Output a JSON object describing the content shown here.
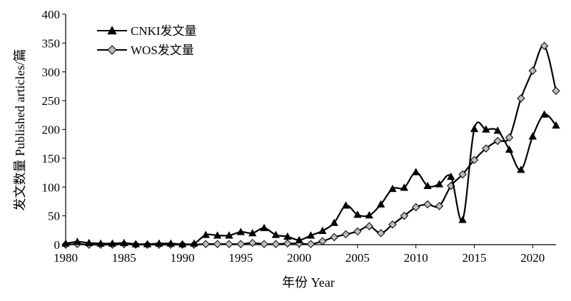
{
  "chart_data": {
    "type": "line",
    "xlabel": "年份 Year",
    "ylabel": "发文数量 Published articles/篇",
    "xlim": [
      1980,
      2022
    ],
    "ylim": [
      0,
      400
    ],
    "x_ticks": [
      1980,
      1985,
      1990,
      1995,
      2000,
      2005,
      2010,
      2015,
      2020
    ],
    "y_ticks": [
      0,
      50,
      100,
      150,
      200,
      250,
      300,
      350,
      400
    ],
    "legend_position": "top-left",
    "grid": false,
    "x": [
      1980,
      1981,
      1982,
      1983,
      1984,
      1985,
      1986,
      1987,
      1988,
      1989,
      1990,
      1991,
      1992,
      1993,
      1994,
      1995,
      1996,
      1997,
      1998,
      1999,
      2000,
      2001,
      2002,
      2003,
      2004,
      2005,
      2006,
      2007,
      2008,
      2009,
      2010,
      2011,
      2012,
      2013,
      2014,
      2015,
      2016,
      2017,
      2018,
      2019,
      2020,
      2021,
      2022
    ],
    "series": [
      {
        "name": "CNKI发文量",
        "marker": "triangle",
        "values": [
          2,
          5,
          3,
          2,
          2,
          3,
          1,
          1,
          2,
          2,
          1,
          2,
          17,
          16,
          16,
          22,
          20,
          29,
          17,
          14,
          8,
          16,
          24,
          38,
          68,
          52,
          51,
          70,
          97,
          99,
          126,
          102,
          105,
          118,
          43,
          201,
          200,
          198,
          165,
          130,
          188,
          226,
          207
        ]
      },
      {
        "name": "WOS发文量",
        "marker": "diamond",
        "values": [
          0,
          1,
          0,
          0,
          0,
          1,
          0,
          0,
          0,
          0,
          0,
          0,
          1,
          1,
          1,
          1,
          3,
          1,
          1,
          2,
          2,
          1,
          6,
          13,
          18,
          23,
          32,
          20,
          35,
          50,
          65,
          70,
          67,
          102,
          122,
          147,
          167,
          180,
          186,
          254,
          302,
          345,
          267
        ]
      }
    ]
  }
}
